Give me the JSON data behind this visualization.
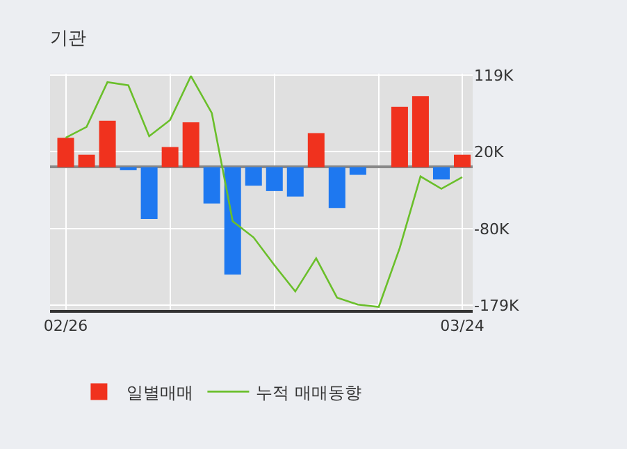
{
  "chart_data": {
    "type": "bar",
    "title": "기관",
    "categories": [
      "02/26",
      null,
      null,
      null,
      null,
      null,
      null,
      null,
      null,
      null,
      null,
      null,
      null,
      null,
      null,
      null,
      null,
      null,
      null,
      "03/24"
    ],
    "series": [
      {
        "name": "일별매매",
        "colors": [
          "#f0321e",
          "#f0321e",
          "#f0321e",
          "#1e78f0",
          "#1e78f0",
          "#f0321e",
          "#f0321e",
          "#1e78f0",
          "#1e78f0",
          "#1e78f0",
          "#1e78f0",
          "#1e78f0",
          "#f0321e",
          "#1e78f0",
          "#1e78f0",
          "#f0321e",
          "#f0321e",
          "#f0321e",
          "#1e78f0",
          "#f0321e"
        ],
        "values": [
          38,
          16,
          60,
          -4,
          -67,
          26,
          58,
          -47,
          -139,
          -24,
          -31,
          -38,
          44,
          -53,
          -10,
          0,
          78,
          92,
          -16,
          16
        ]
      },
      {
        "name": "누적 매매동향",
        "type": "line",
        "color": "#6abf2a",
        "values": [
          38,
          52,
          110,
          106,
          40,
          61,
          118,
          70,
          -70,
          -91,
          -127,
          -161,
          -118,
          -169,
          -178,
          -181,
          -105,
          -12,
          -28,
          -13
        ]
      }
    ],
    "ylim": [
      -185,
      121
    ],
    "yticks": [
      {
        "value": 119,
        "label": "119K"
      },
      {
        "value": 20,
        "label": "20K"
      },
      {
        "value": -80,
        "label": "-80K"
      },
      {
        "value": -179,
        "label": "-179K"
      }
    ],
    "grid": true,
    "legend": "bottom",
    "marker": "none",
    "line_style": "solid"
  }
}
